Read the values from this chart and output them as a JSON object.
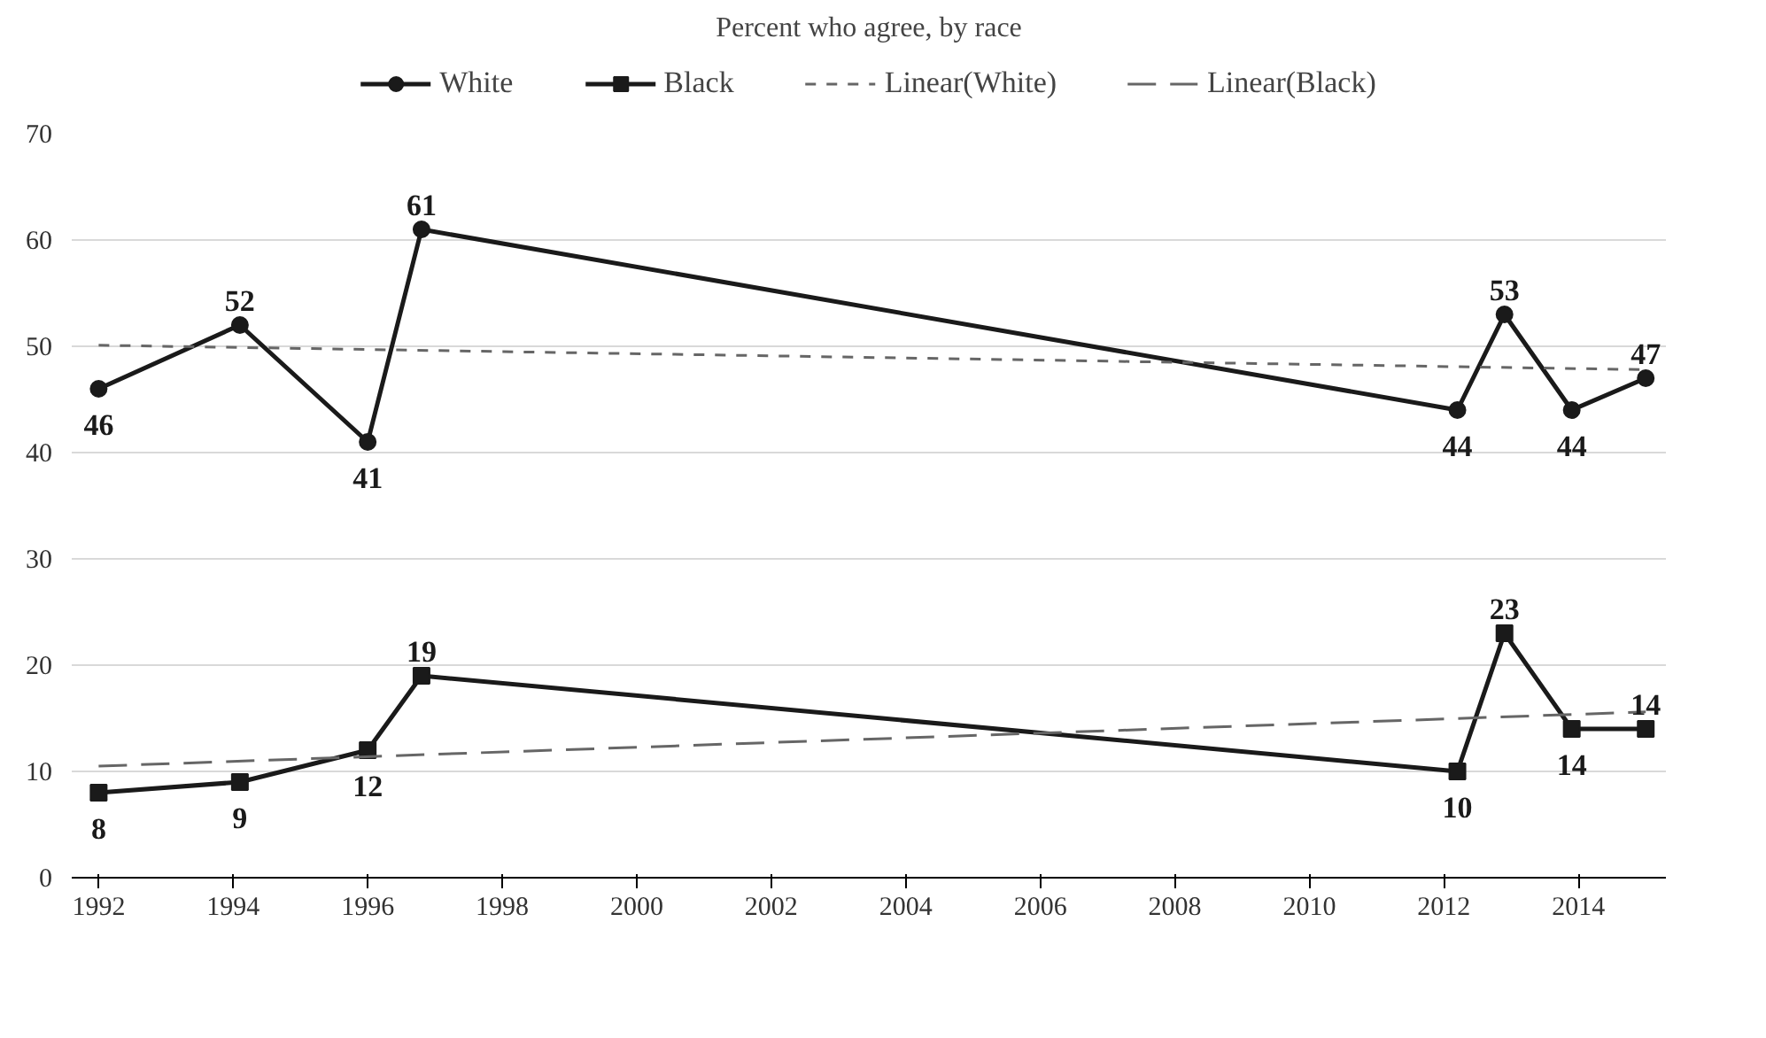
{
  "chart_data": {
    "type": "line",
    "title": "Percent who agree, by race",
    "xlim": [
      1991.6,
      2015.3
    ],
    "xticks": [
      1992,
      1994,
      1996,
      1998,
      2000,
      2002,
      2004,
      2006,
      2008,
      2010,
      2012,
      2014
    ],
    "ylim": [
      0,
      70
    ],
    "yticks": [
      0,
      10,
      20,
      30,
      40,
      50,
      60,
      70
    ],
    "grid": "y",
    "legend": "top",
    "series": [
      {
        "name": "White",
        "color": "#1a1a1a",
        "marker": "circle",
        "line_style": "solid",
        "data_labels": true,
        "x": [
          1992,
          1994.1,
          1996,
          1996.8,
          2012.2,
          2012.9,
          2013.9,
          2015
        ],
        "values": [
          46,
          52,
          41,
          61,
          44,
          53,
          44,
          47
        ]
      },
      {
        "name": "Black",
        "color": "#1a1a1a",
        "marker": "square",
        "line_style": "solid",
        "data_labels": true,
        "x": [
          1992,
          1994.1,
          1996,
          1996.8,
          2012.2,
          2012.9,
          2013.9,
          2015
        ],
        "values": [
          8,
          9,
          12,
          19,
          10,
          23,
          14,
          14
        ]
      },
      {
        "name": "Linear(White)",
        "color": "#666666",
        "marker": "none",
        "line_style": "dashed",
        "x": [
          1992,
          2015
        ],
        "values": [
          50.1,
          47.8
        ]
      },
      {
        "name": "Linear(Black)",
        "color": "#666666",
        "marker": "none",
        "line_style": "longdash",
        "x": [
          1992,
          2015
        ],
        "values": [
          10.5,
          15.6
        ]
      }
    ]
  }
}
